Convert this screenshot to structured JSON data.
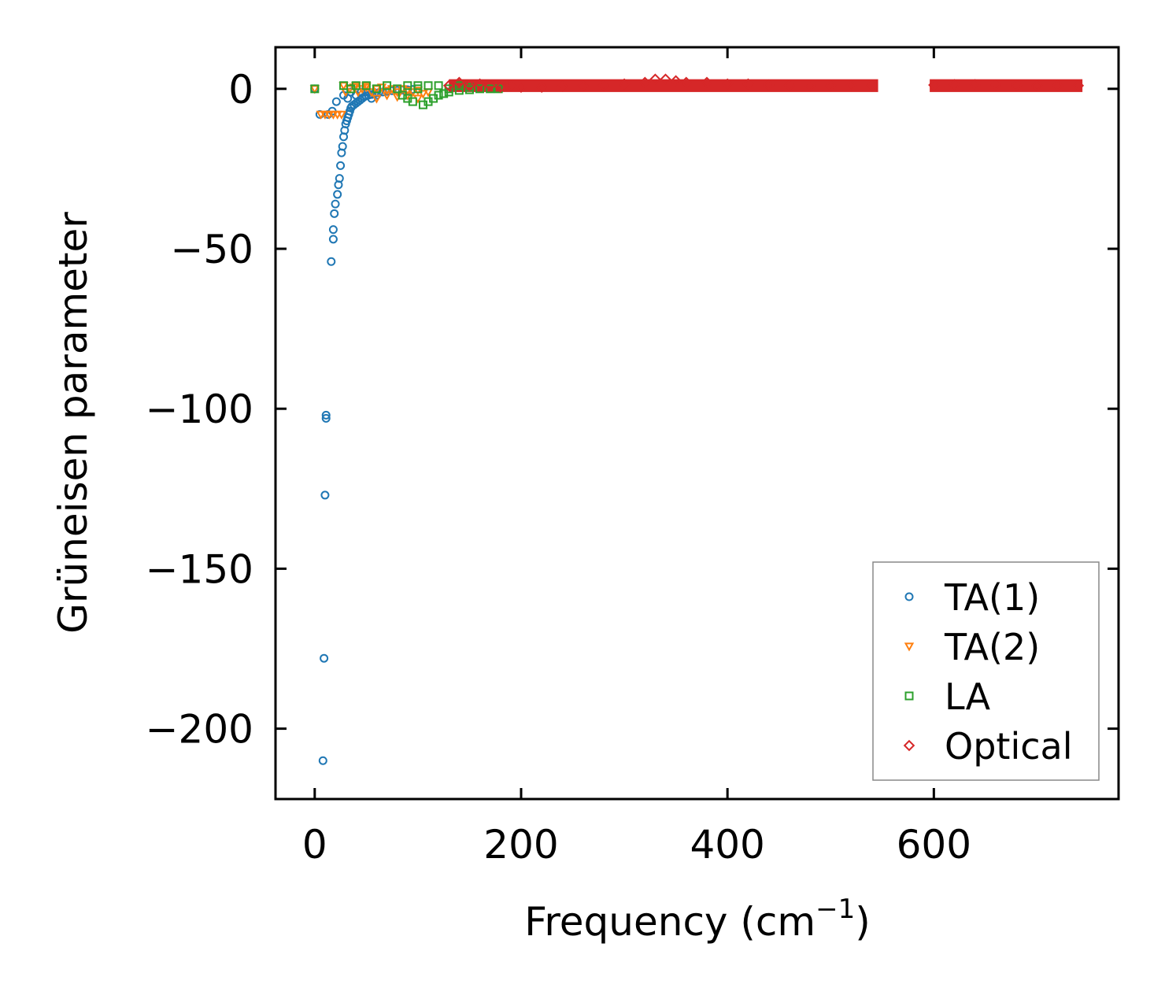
{
  "chart_data": {
    "type": "scatter",
    "title": "",
    "xlabel": "Frequency (cm",
    "xlabel_sup": "−1",
    "xlabel_suffix": ")",
    "ylabel": "Grüneisen parameter",
    "xlim": [
      -38,
      779
    ],
    "ylim": [
      -222,
      13
    ],
    "xticks": [
      0,
      200,
      400,
      600
    ],
    "xtick_labels": [
      "0",
      "200",
      "400",
      "600"
    ],
    "yticks": [
      0,
      -50,
      -100,
      -150,
      -200
    ],
    "ytick_labels": [
      "0",
      "−50",
      "−100",
      "−150",
      "−200"
    ],
    "grid": false,
    "legend_position": "bottom-right",
    "series": [
      {
        "name": "TA(1)",
        "marker": "circle",
        "color": "#1f77b4",
        "points": [
          [
            0,
            0
          ],
          [
            5,
            -8
          ],
          [
            8,
            -210
          ],
          [
            9,
            -178
          ],
          [
            10,
            -127
          ],
          [
            11,
            -102
          ],
          [
            11,
            -103
          ],
          [
            13,
            -8
          ],
          [
            16,
            -54
          ],
          [
            17,
            -7
          ],
          [
            18,
            -44
          ],
          [
            18,
            -47
          ],
          [
            19,
            -39
          ],
          [
            20,
            -36
          ],
          [
            21,
            -4
          ],
          [
            22,
            -33
          ],
          [
            23,
            -30
          ],
          [
            24,
            -28
          ],
          [
            25,
            -24
          ],
          [
            26,
            -20
          ],
          [
            27,
            -18
          ],
          [
            28,
            -15
          ],
          [
            29,
            -13
          ],
          [
            30,
            -11
          ],
          [
            31,
            -10
          ],
          [
            32,
            -9
          ],
          [
            33,
            -8
          ],
          [
            34,
            -7
          ],
          [
            35,
            -6
          ],
          [
            36,
            -5.5
          ],
          [
            38,
            -5
          ],
          [
            40,
            -4.5
          ],
          [
            42,
            -4
          ],
          [
            44,
            -3.5
          ],
          [
            46,
            -3
          ],
          [
            48,
            -2.5
          ],
          [
            50,
            -2.2
          ],
          [
            52,
            -2
          ],
          [
            55,
            -1.8
          ],
          [
            58,
            -1.5
          ],
          [
            62,
            -1.2
          ],
          [
            66,
            -1
          ],
          [
            70,
            -0.8
          ],
          [
            75,
            -0.6
          ],
          [
            80,
            -0.5
          ],
          [
            85,
            -0.4
          ],
          [
            90,
            -0.3
          ],
          [
            95,
            -0.2
          ],
          [
            28,
            -2
          ],
          [
            32,
            -3
          ],
          [
            35,
            -1
          ],
          [
            40,
            -2
          ],
          [
            45,
            -1
          ],
          [
            50,
            -1
          ],
          [
            55,
            -3
          ],
          [
            60,
            -2
          ]
        ]
      },
      {
        "name": "TA(2)",
        "marker": "triangle-down",
        "color": "#ff7f0e",
        "points": [
          [
            0,
            0
          ],
          [
            6,
            -8
          ],
          [
            10,
            -8
          ],
          [
            14,
            -8
          ],
          [
            18,
            -8
          ],
          [
            22,
            -8
          ],
          [
            26,
            -8
          ],
          [
            28,
            1
          ],
          [
            30,
            -1
          ],
          [
            34,
            0
          ],
          [
            38,
            0.5
          ],
          [
            42,
            -1
          ],
          [
            46,
            0
          ],
          [
            50,
            0.5
          ],
          [
            55,
            -1
          ],
          [
            60,
            0
          ],
          [
            65,
            0.5
          ],
          [
            70,
            -0.5
          ],
          [
            75,
            0
          ],
          [
            80,
            -1
          ],
          [
            85,
            0
          ],
          [
            90,
            -0.5
          ],
          [
            95,
            -1
          ],
          [
            100,
            -0.5
          ],
          [
            105,
            -1.5
          ],
          [
            110,
            -1
          ],
          [
            60,
            -3
          ],
          [
            70,
            -2
          ],
          [
            80,
            -2.5
          ],
          [
            90,
            -2
          ],
          [
            100,
            -3
          ],
          [
            50,
            1
          ],
          [
            40,
            1
          ]
        ]
      },
      {
        "name": "LA",
        "marker": "square",
        "color": "#2ca02c",
        "points": [
          [
            0,
            0
          ],
          [
            28,
            1
          ],
          [
            35,
            0
          ],
          [
            40,
            1
          ],
          [
            50,
            1
          ],
          [
            60,
            0
          ],
          [
            70,
            1
          ],
          [
            80,
            0
          ],
          [
            90,
            1
          ],
          [
            100,
            0
          ],
          [
            105,
            -5
          ],
          [
            110,
            -4
          ],
          [
            115,
            -3
          ],
          [
            120,
            -2
          ],
          [
            125,
            -1.5
          ],
          [
            130,
            -1
          ],
          [
            140,
            -0.5
          ],
          [
            150,
            -0.3
          ],
          [
            160,
            0
          ],
          [
            170,
            0
          ],
          [
            178,
            0
          ],
          [
            100,
            1
          ],
          [
            110,
            1
          ],
          [
            120,
            1
          ],
          [
            130,
            0
          ],
          [
            95,
            -4
          ],
          [
            90,
            -3
          ],
          [
            85,
            -2
          ],
          [
            140,
            1
          ],
          [
            150,
            0.5
          ]
        ]
      },
      {
        "name": "Optical",
        "marker": "diamond",
        "color": "#d62728",
        "points": [
          [
            130,
            1
          ],
          [
            140,
            2
          ],
          [
            150,
            1
          ],
          [
            160,
            1.5
          ],
          [
            170,
            1
          ],
          [
            180,
            0.5
          ],
          [
            190,
            1
          ],
          [
            200,
            0.5
          ],
          [
            220,
            0.5
          ],
          [
            240,
            0.8
          ],
          [
            260,
            1
          ],
          [
            280,
            1
          ],
          [
            300,
            1.5
          ],
          [
            320,
            2
          ],
          [
            330,
            3
          ],
          [
            340,
            3
          ],
          [
            350,
            2.5
          ],
          [
            360,
            2
          ],
          [
            380,
            2
          ],
          [
            400,
            1.5
          ],
          [
            420,
            1.5
          ],
          [
            440,
            1.2
          ],
          [
            460,
            1
          ],
          [
            480,
            1
          ],
          [
            500,
            1
          ],
          [
            520,
            1
          ],
          [
            540,
            1
          ],
          [
            600,
            1.2
          ],
          [
            620,
            1.3
          ],
          [
            640,
            1.3
          ],
          [
            660,
            1.2
          ],
          [
            680,
            1.1
          ],
          [
            700,
            1
          ],
          [
            720,
            1
          ],
          [
            740,
            1
          ]
        ]
      }
    ],
    "optical_bands": [
      [
        130,
        546
      ],
      [
        596,
        744
      ]
    ]
  }
}
